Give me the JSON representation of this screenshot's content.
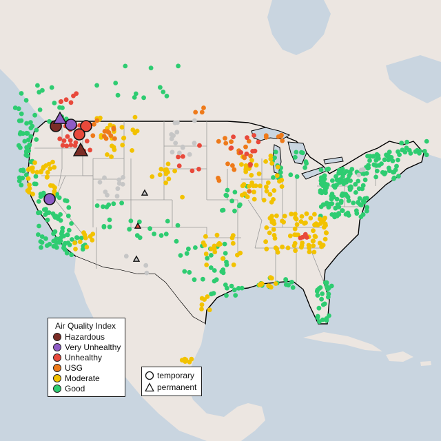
{
  "legend": {
    "title": "Air Quality Index",
    "categories": [
      {
        "label": "Hazardous",
        "color": "#7b2d26"
      },
      {
        "label": "Very Unhealthy",
        "color": "#8e5cc6"
      },
      {
        "label": "Unhealthy",
        "color": "#e8493b"
      },
      {
        "label": "USG",
        "color": "#ee7a1a"
      },
      {
        "label": "Moderate",
        "color": "#f2c200"
      },
      {
        "label": "Good",
        "color": "#2ecc71"
      }
    ],
    "no_data_color": "#c6c6c6"
  },
  "monitor_types": {
    "temporary": "temporary",
    "permanent": "permanent",
    "temporary_icon": "circle-icon",
    "permanent_icon": "triangle-icon"
  },
  "colors": {
    "land": "#ece6e1",
    "water": "#c9d5e0",
    "border": "#000000",
    "state_lines": "#9a9a9a"
  }
}
